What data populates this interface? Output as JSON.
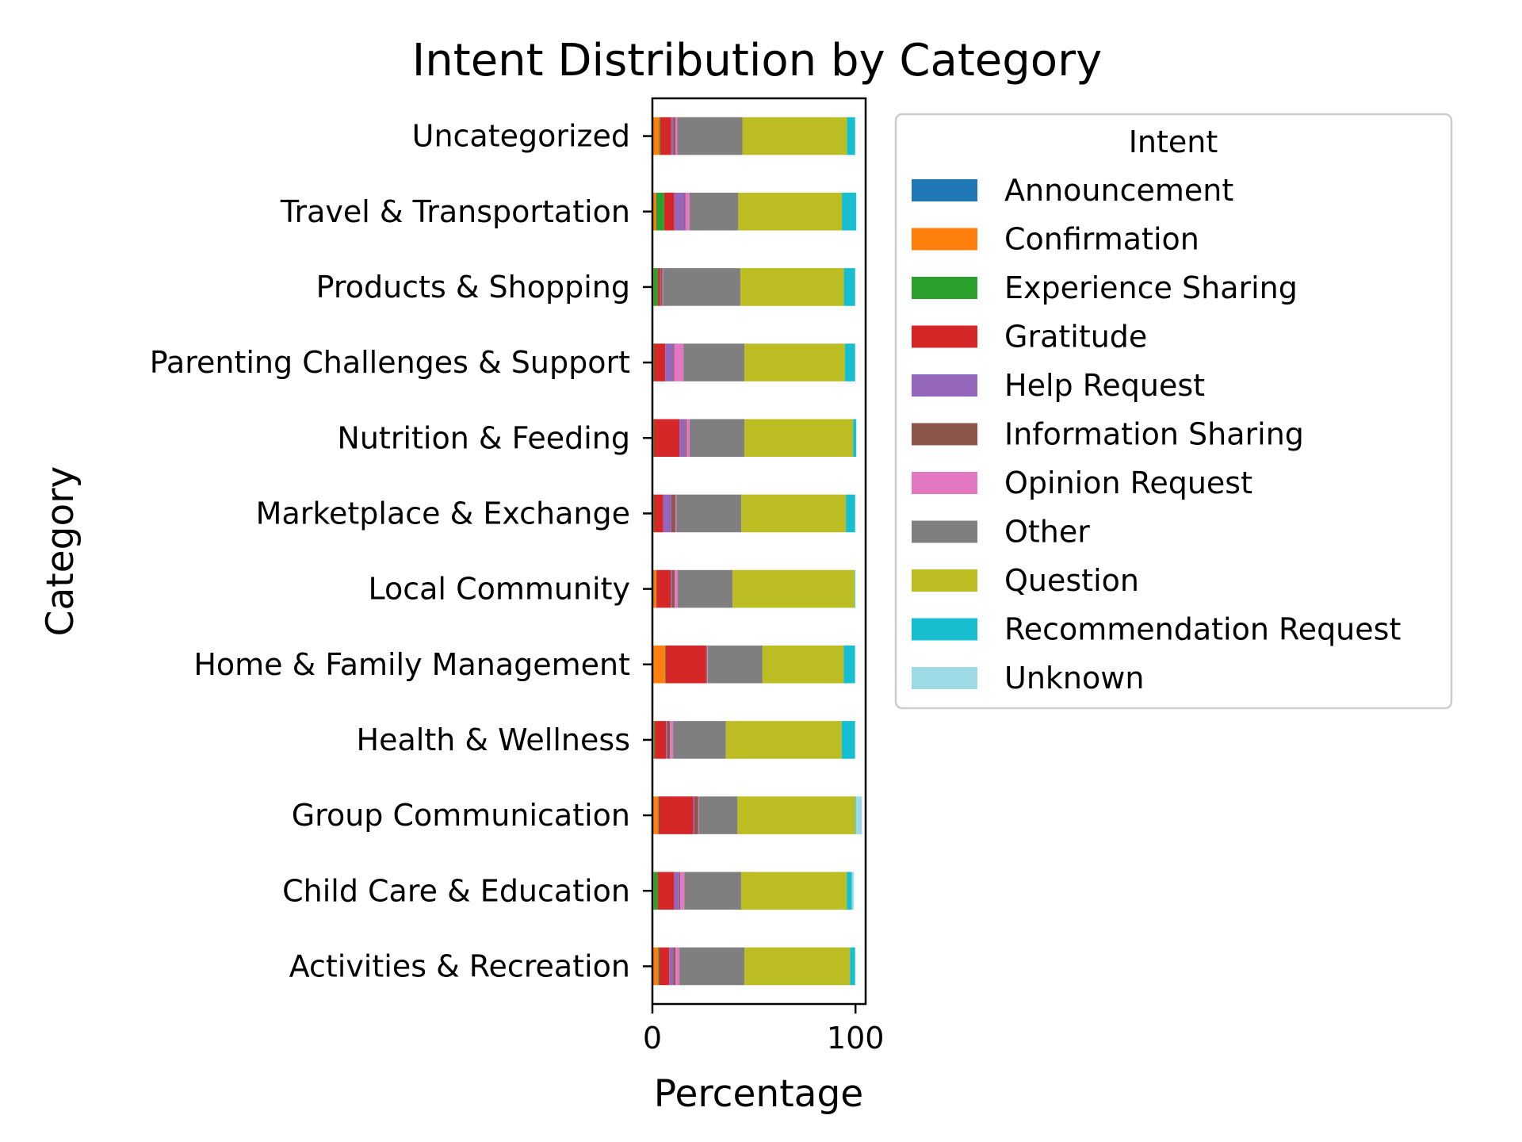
{
  "chart_data": {
    "type": "bar",
    "orientation": "horizontal",
    "stacked": true,
    "title": "Intent Distribution by Category",
    "xlabel": "Percentage",
    "ylabel": "Category",
    "xlim": [
      0,
      105
    ],
    "xticks": [
      0,
      100
    ],
    "categories": [
      "Activities & Recreation",
      "Child Care & Education",
      "Group Communication",
      "Health & Wellness",
      "Home & Family Management",
      "Local Community",
      "Marketplace & Exchange",
      "Nutrition & Feeding",
      "Parenting Challenges & Support",
      "Products & Shopping",
      "Travel & Transportation",
      "Uncategorized"
    ],
    "legend": {
      "title": "Intent",
      "placement": "outside-right-top"
    },
    "series": [
      {
        "name": "Announcement",
        "color": "#1f77b4",
        "values": [
          0.3,
          0.2,
          0.3,
          0.2,
          0.2,
          0.3,
          0.2,
          0.2,
          0.2,
          0.2,
          0.3,
          0.3
        ]
      },
      {
        "name": "Confirmation",
        "color": "#ff7f0e",
        "values": [
          2.5,
          0.5,
          2.5,
          0.5,
          6.0,
          1.5,
          0.3,
          0.3,
          0.3,
          0.5,
          1.5,
          3.0
        ]
      },
      {
        "name": "Experience Sharing",
        "color": "#2ca02c",
        "values": [
          0.5,
          2.0,
          0.3,
          0.5,
          0.3,
          0.2,
          0.3,
          0.3,
          0.3,
          2.0,
          4.0,
          0.5
        ]
      },
      {
        "name": "Gratitude",
        "color": "#d62728",
        "values": [
          5.0,
          8.0,
          17.0,
          5.5,
          20.0,
          7.0,
          4.5,
          12.5,
          5.5,
          1.0,
          5.0,
          5.5
        ]
      },
      {
        "name": "Help Request",
        "color": "#9467bd",
        "values": [
          2.0,
          2.5,
          0.5,
          0.5,
          0.2,
          0.5,
          4.0,
          3.0,
          4.0,
          0.3,
          5.0,
          1.0
        ]
      },
      {
        "name": "Information Sharing",
        "color": "#8c564b",
        "values": [
          1.0,
          0.5,
          2.0,
          1.5,
          0.3,
          1.5,
          2.0,
          0.5,
          0.5,
          1.0,
          0.5,
          1.0
        ]
      },
      {
        "name": "Opinion Request",
        "color": "#e377c2",
        "values": [
          2.0,
          2.0,
          0.3,
          1.5,
          0.2,
          1.5,
          0.5,
          1.5,
          4.5,
          0.3,
          2.0,
          1.0
        ]
      },
      {
        "name": "Other",
        "color": "#7f7f7f",
        "values": [
          32.0,
          28.0,
          19.0,
          26.0,
          27.0,
          27.0,
          32.0,
          27.0,
          30.0,
          38.0,
          24.0,
          32.0
        ]
      },
      {
        "name": "Question",
        "color": "#bcbd22",
        "values": [
          52.0,
          52.0,
          58.0,
          57.0,
          40.0,
          60.0,
          51.5,
          53.5,
          49.5,
          51.0,
          51.0,
          51.5
        ]
      },
      {
        "name": "Recommendation Request",
        "color": "#17becf",
        "values": [
          2.5,
          2.5,
          0.3,
          6.5,
          5.5,
          0.3,
          4.5,
          1.5,
          5.0,
          5.5,
          7.0,
          4.0
        ]
      },
      {
        "name": "Unknown",
        "color": "#9edae5",
        "values": [
          0.2,
          1.0,
          3.0,
          0.3,
          0.3,
          0.2,
          0.2,
          0.2,
          0.2,
          0.2,
          0.2,
          0.2
        ]
      }
    ]
  }
}
